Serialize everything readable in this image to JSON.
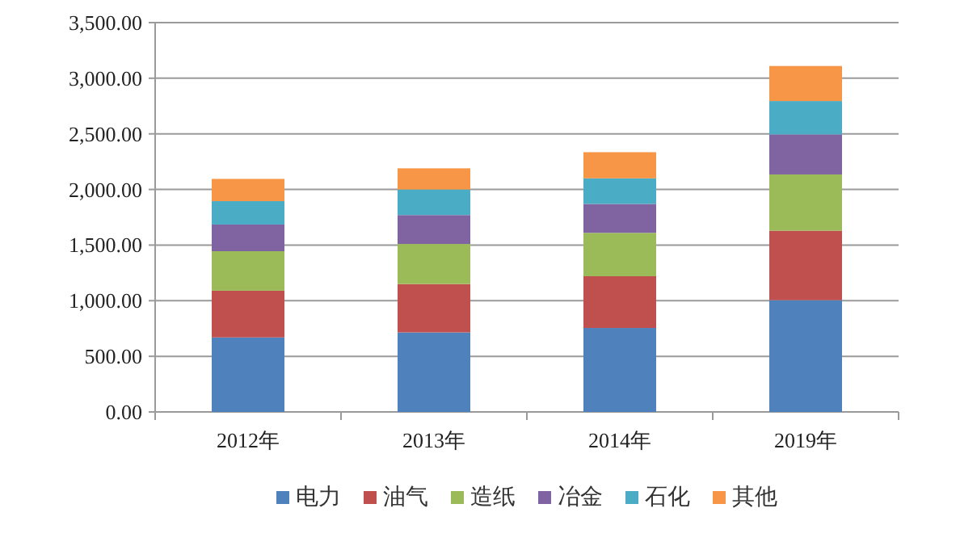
{
  "chart_data": {
    "type": "bar",
    "stacked": true,
    "categories": [
      "2012年",
      "2013年",
      "2014年",
      "2019年"
    ],
    "series": [
      {
        "name": "电力",
        "color": "#4f81bd",
        "values": [
          670,
          715,
          755,
          1005
        ]
      },
      {
        "name": "油气",
        "color": "#c0504d",
        "values": [
          420,
          435,
          465,
          625
        ]
      },
      {
        "name": "造纸",
        "color": "#9bbb59",
        "values": [
          355,
          360,
          390,
          505
        ]
      },
      {
        "name": "冶金",
        "color": "#8064a2",
        "values": [
          240,
          260,
          260,
          360
        ]
      },
      {
        "name": "石化",
        "color": "#4bacc6",
        "values": [
          210,
          230,
          230,
          300
        ]
      },
      {
        "name": "其他",
        "color": "#f79646",
        "values": [
          200,
          190,
          235,
          315
        ]
      }
    ],
    "ylim": [
      0,
      3500
    ],
    "yticks": [
      {
        "value": 0,
        "label": "0.00"
      },
      {
        "value": 500,
        "label": "500.00"
      },
      {
        "value": 1000,
        "label": "1,000.00"
      },
      {
        "value": 1500,
        "label": "1,500.00"
      },
      {
        "value": 2000,
        "label": "2,000.00"
      },
      {
        "value": 2500,
        "label": "2,500.00"
      },
      {
        "value": 3000,
        "label": "3,000.00"
      },
      {
        "value": 3500,
        "label": "3,500.00"
      }
    ],
    "grid": "y",
    "legend": "bottom"
  }
}
